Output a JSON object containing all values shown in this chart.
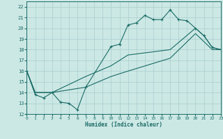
{
  "xlabel": "Humidex (Indice chaleur)",
  "background_color": "#cce8e5",
  "line_color": "#1a6b65",
  "grid_color": "#a8cece",
  "xlim": [
    0,
    23
  ],
  "ylim": [
    12,
    22.5
  ],
  "xticks": [
    0,
    1,
    2,
    3,
    4,
    5,
    6,
    7,
    8,
    9,
    10,
    11,
    12,
    13,
    14,
    15,
    16,
    17,
    18,
    19,
    20,
    21,
    22,
    23
  ],
  "yticks": [
    12,
    13,
    14,
    15,
    16,
    17,
    18,
    19,
    20,
    21,
    22
  ],
  "line1_x": [
    0,
    1,
    2,
    3,
    4,
    5,
    6,
    7,
    10,
    11,
    12,
    13,
    14,
    15,
    16,
    17,
    18,
    19,
    20,
    21,
    22,
    23
  ],
  "line1_y": [
    16,
    13.8,
    13.5,
    14,
    13.1,
    13.0,
    12.4,
    14.5,
    18.3,
    18.5,
    20.3,
    20.5,
    21.2,
    20.8,
    20.8,
    21.7,
    20.8,
    20.7,
    20.0,
    19.3,
    18.2,
    18.0
  ],
  "line2_x": [
    0,
    1,
    3,
    7,
    10,
    12,
    17,
    20,
    21,
    22,
    23
  ],
  "line2_y": [
    16,
    14,
    14,
    15.5,
    16.5,
    17.5,
    18.0,
    20.0,
    19.3,
    18.2,
    18.0
  ],
  "line3_x": [
    0,
    1,
    3,
    7,
    10,
    12,
    17,
    20,
    22,
    23
  ],
  "line3_y": [
    16,
    14,
    14,
    14.5,
    15.5,
    16.0,
    17.2,
    19.5,
    18.0,
    18.0
  ]
}
